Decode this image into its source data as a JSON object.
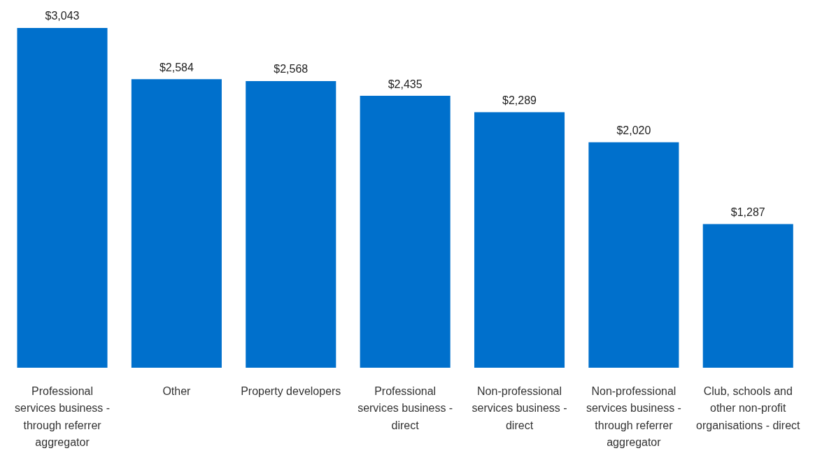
{
  "chart_data": {
    "type": "bar",
    "categories": [
      "Professional services business - through referrer aggregator",
      "Other",
      "Property developers",
      "Professional services business - direct",
      "Non-professional services business - direct",
      "Non-professional services business - through referrer aggregator",
      "Club, schools and other non-profit organisations - direct"
    ],
    "values": [
      3043,
      2584,
      2568,
      2435,
      2289,
      2020,
      1287
    ],
    "value_labels": [
      "$3,043",
      "$2,584",
      "$2,568",
      "$2,435",
      "$2,289",
      "$2,020",
      "$1,287"
    ],
    "color": "#0070cc",
    "grid": false,
    "legend": false
  }
}
